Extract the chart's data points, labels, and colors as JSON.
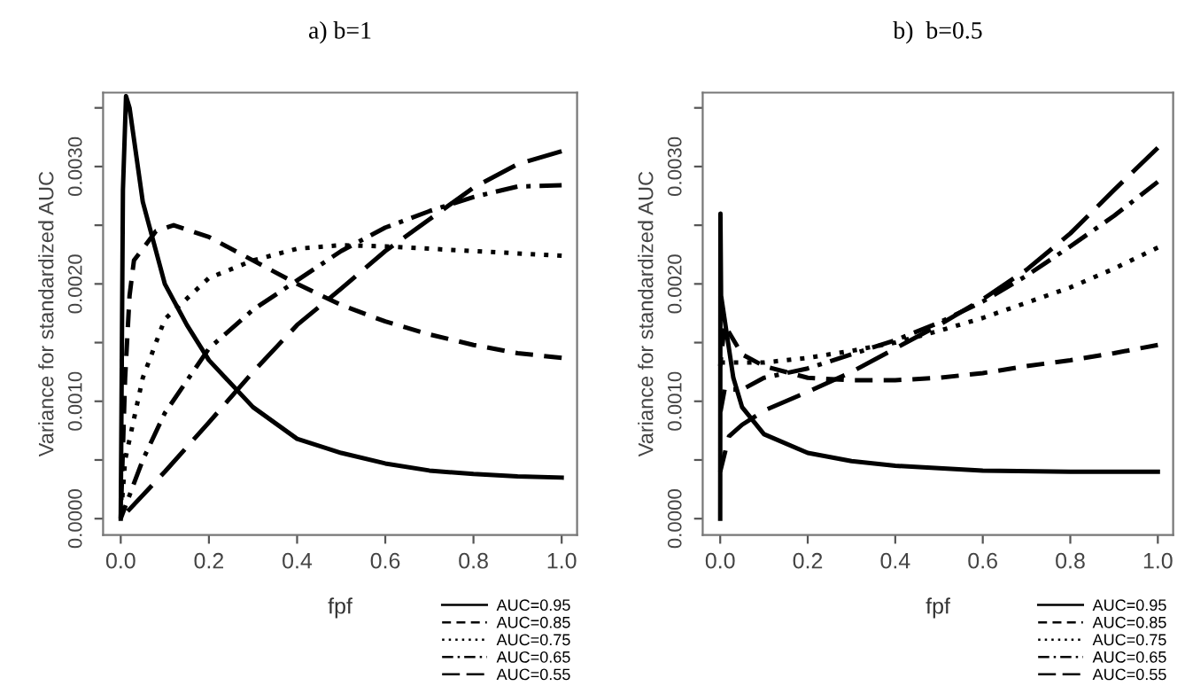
{
  "chart_data": [
    {
      "type": "line",
      "title": "a) b=1",
      "xlabel": "fpf",
      "ylabel": "Variance for standardized AUC",
      "xlim": [
        -0.04,
        1.035
      ],
      "ylim": [
        -0.00014,
        0.00363
      ],
      "xticks": [
        {
          "value": 0,
          "label": "0.0"
        },
        {
          "value": 0.2,
          "label": "0.2"
        },
        {
          "value": 0.4,
          "label": "0.4"
        },
        {
          "value": 0.6,
          "label": "0.6"
        },
        {
          "value": 0.8,
          "label": "0.8"
        },
        {
          "value": 1,
          "label": "1.0"
        }
      ],
      "yticks": [
        {
          "value": 0,
          "label": "0.0000"
        },
        {
          "value": 0.0005,
          "label": null
        },
        {
          "value": 0.001,
          "label": "0.0010"
        },
        {
          "value": 0.0015,
          "label": null
        },
        {
          "value": 0.002,
          "label": "0.0020"
        },
        {
          "value": 0.0025,
          "label": null
        },
        {
          "value": 0.003,
          "label": "0.0030"
        },
        {
          "value": 0.0035,
          "label": null
        }
      ],
      "legend": "bottom right",
      "grid": false,
      "series": [
        {
          "name": "AUC=0.95",
          "color": "#000000",
          "line_style": "solid",
          "x": [
            0,
            0.005,
            0.012,
            0.02,
            0.05,
            0.1,
            0.15,
            0.2,
            0.3,
            0.4,
            0.5,
            0.6,
            0.7,
            0.8,
            0.9,
            1.0
          ],
          "values": [
            0,
            0.0028,
            0.0036,
            0.0035,
            0.0027,
            0.002,
            0.00165,
            0.00135,
            0.00095,
            0.00068,
            0.00056,
            0.00047,
            0.00041,
            0.00038,
            0.00036,
            0.00035
          ]
        },
        {
          "name": "AUC=0.85",
          "color": "#000000",
          "line_style": "dashed",
          "x": [
            0,
            0.01,
            0.02,
            0.03,
            0.05,
            0.08,
            0.12,
            0.2,
            0.3,
            0.4,
            0.5,
            0.6,
            0.7,
            0.8,
            0.9,
            1.0
          ],
          "values": [
            0,
            0.0012,
            0.0019,
            0.0022,
            0.0023,
            0.00245,
            0.0025,
            0.0024,
            0.0022,
            0.002,
            0.00182,
            0.00168,
            0.00157,
            0.00148,
            0.00141,
            0.00137
          ]
        },
        {
          "name": "AUC=0.75",
          "color": "#000000",
          "line_style": "dotted",
          "x": [
            0,
            0.01,
            0.05,
            0.1,
            0.2,
            0.3,
            0.4,
            0.5,
            0.6,
            0.7,
            0.8,
            0.9,
            1.0
          ],
          "values": [
            0,
            0.0005,
            0.0012,
            0.0017,
            0.00205,
            0.0022,
            0.0023,
            0.00233,
            0.00232,
            0.0023,
            0.00228,
            0.00226,
            0.00224
          ]
        },
        {
          "name": "AUC=0.65",
          "color": "#000000",
          "line_style": "dashdot",
          "x": [
            0,
            0.05,
            0.1,
            0.2,
            0.3,
            0.4,
            0.5,
            0.6,
            0.7,
            0.8,
            0.9,
            1.0
          ],
          "values": [
            0,
            0.0005,
            0.0009,
            0.00145,
            0.00178,
            0.00203,
            0.00228,
            0.00248,
            0.00262,
            0.00274,
            0.00283,
            0.00284
          ]
        },
        {
          "name": "AUC=0.55",
          "color": "#000000",
          "line_style": "longdash",
          "x": [
            0,
            0.1,
            0.2,
            0.3,
            0.4,
            0.5,
            0.6,
            0.7,
            0.8,
            0.9,
            1.0
          ],
          "values": [
            0,
            0.0004,
            0.00082,
            0.00125,
            0.00165,
            0.00196,
            0.00228,
            0.00255,
            0.00282,
            0.00302,
            0.00313
          ]
        }
      ]
    },
    {
      "type": "line",
      "title": "b)  b=0.5",
      "xlabel": "fpf",
      "ylabel": "Variance for standardized AUC",
      "xlim": [
        -0.04,
        1.035
      ],
      "ylim": [
        -0.00014,
        0.00363
      ],
      "xticks": [
        {
          "value": 0,
          "label": "0.0"
        },
        {
          "value": 0.2,
          "label": "0.2"
        },
        {
          "value": 0.4,
          "label": "0.4"
        },
        {
          "value": 0.6,
          "label": "0.6"
        },
        {
          "value": 0.8,
          "label": "0.8"
        },
        {
          "value": 1,
          "label": "1.0"
        }
      ],
      "yticks": [
        {
          "value": 0,
          "label": "0.0000"
        },
        {
          "value": 0.0005,
          "label": null
        },
        {
          "value": 0.001,
          "label": "0.0010"
        },
        {
          "value": 0.0015,
          "label": null
        },
        {
          "value": 0.002,
          "label": "0.0020"
        },
        {
          "value": 0.0025,
          "label": null
        },
        {
          "value": 0.003,
          "label": "0.0030"
        },
        {
          "value": 0.0035,
          "label": null
        }
      ],
      "legend": "bottom right",
      "grid": false,
      "series": [
        {
          "name": "AUC=0.95",
          "color": "#000000",
          "line_style": "solid",
          "x": [
            0,
            0.0005,
            0.002,
            0.01,
            0.03,
            0.05,
            0.1,
            0.2,
            0.3,
            0.4,
            0.5,
            0.6,
            0.8,
            1.0
          ],
          "values": [
            0,
            0.0026,
            0.0019,
            0.0017,
            0.0012,
            0.00095,
            0.00072,
            0.00056,
            0.00049,
            0.00045,
            0.00043,
            0.00041,
            0.0004,
            0.0004
          ]
        },
        {
          "name": "AUC=0.85",
          "color": "#000000",
          "line_style": "dashed",
          "x": [
            0,
            0.01,
            0.05,
            0.1,
            0.2,
            0.3,
            0.4,
            0.5,
            0.6,
            0.7,
            0.8,
            0.9,
            1.0
          ],
          "values": [
            0.0013,
            0.00165,
            0.0014,
            0.0013,
            0.0012,
            0.00118,
            0.00118,
            0.0012,
            0.00124,
            0.0013,
            0.00135,
            0.00141,
            0.00148
          ]
        },
        {
          "name": "AUC=0.75",
          "color": "#000000",
          "line_style": "dotted",
          "x": [
            0,
            0.1,
            0.2,
            0.3,
            0.4,
            0.5,
            0.6,
            0.7,
            0.8,
            0.9,
            1.0
          ],
          "values": [
            0.00133,
            0.00133,
            0.00137,
            0.00143,
            0.0015,
            0.0016,
            0.00171,
            0.00184,
            0.00197,
            0.00213,
            0.00231
          ]
        },
        {
          "name": "AUC=0.65",
          "color": "#000000",
          "line_style": "dashdot",
          "x": [
            0,
            0.01,
            0.05,
            0.1,
            0.2,
            0.3,
            0.4,
            0.5,
            0.6,
            0.7,
            0.8,
            0.9,
            1.0
          ],
          "values": [
            0.0009,
            0.0011,
            0.0011,
            0.0012,
            0.00128,
            0.0014,
            0.00152,
            0.00167,
            0.00185,
            0.00207,
            0.00232,
            0.00258,
            0.00287
          ]
        },
        {
          "name": "AUC=0.55",
          "color": "#000000",
          "line_style": "longdash",
          "x": [
            0,
            0.02,
            0.05,
            0.1,
            0.2,
            0.3,
            0.4,
            0.5,
            0.6,
            0.7,
            0.8,
            0.9,
            1.0
          ],
          "values": [
            0.0004,
            0.0007,
            0.0008,
            0.00092,
            0.00108,
            0.00125,
            0.00145,
            0.00165,
            0.00187,
            0.00212,
            0.00243,
            0.0028,
            0.00316
          ]
        }
      ]
    }
  ]
}
